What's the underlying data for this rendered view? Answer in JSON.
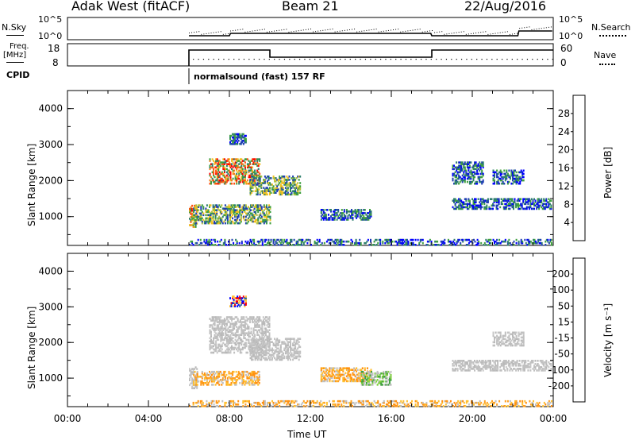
{
  "header": {
    "title": "Adak West (fitACF)",
    "beam": "Beam 21",
    "date": "22/Aug/2016"
  },
  "top_panels": {
    "nsky_label": "N.Sky",
    "nsearch_label": "N.Search",
    "nsky_ticks": [
      "10^5",
      "10^0"
    ],
    "nsearch_ticks": [
      "10^5",
      "10^0"
    ],
    "freq_label_line1": "Freq.",
    "freq_label_line2": "[MHz]",
    "freq_ticks": [
      "18",
      "8"
    ],
    "nave_label": "Nave",
    "nave_ticks": [
      "60",
      "0"
    ],
    "cpid_label": "CPID",
    "cpid_text": "normalsound (fast) 157 RF"
  },
  "chart_data": [
    {
      "type": "heatmap",
      "title": "",
      "ylabel": "Slant Range [km]",
      "xlabel": "",
      "ylim": [
        200,
        4500
      ],
      "yticks": [
        "4000",
        "3000",
        "2000",
        "1000"
      ],
      "colorbar": {
        "label": "Power [dB]",
        "ticks": [
          "28",
          "24",
          "20",
          "16",
          "12",
          "8",
          "4"
        ],
        "colors": [
          "#0000ff",
          "#1f3fb3",
          "#2f7f6f",
          "#3fa03f",
          "#b0c040",
          "#f0c020",
          "#f08020",
          "#ff3010",
          "#ff0000"
        ]
      },
      "regions": [
        {
          "t0": 6.0,
          "t1": 6.4,
          "r0": 700,
          "r1": 1300,
          "level": "high"
        },
        {
          "t0": 6.2,
          "t1": 10.0,
          "r0": 800,
          "r1": 1300,
          "level": "mid"
        },
        {
          "t0": 7.0,
          "t1": 9.5,
          "r0": 1900,
          "r1": 2600,
          "level": "high"
        },
        {
          "t0": 9.0,
          "t1": 11.5,
          "r0": 1600,
          "r1": 2100,
          "level": "mid"
        },
        {
          "t0": 12.5,
          "t1": 15.0,
          "r0": 900,
          "r1": 1200,
          "level": "low"
        },
        {
          "t0": 19.0,
          "t1": 23.9,
          "r0": 1200,
          "r1": 1500,
          "level": "low"
        },
        {
          "t0": 19.0,
          "t1": 20.5,
          "r0": 1900,
          "r1": 2500,
          "level": "low"
        },
        {
          "t0": 21.0,
          "t1": 22.5,
          "r0": 1900,
          "r1": 2300,
          "level": "low"
        },
        {
          "t0": 8.0,
          "t1": 8.8,
          "r0": 3000,
          "r1": 3300,
          "level": "low"
        },
        {
          "t0": 6.0,
          "t1": 23.9,
          "r0": 200,
          "r1": 350,
          "level": "low"
        }
      ]
    },
    {
      "type": "heatmap",
      "title": "",
      "ylabel": "Slant Range [km]",
      "xlabel": "Time UT",
      "ylim": [
        200,
        4500
      ],
      "yticks": [
        "4000",
        "3000",
        "2000",
        "1000"
      ],
      "xticks": [
        "00:00",
        "04:00",
        "08:00",
        "12:00",
        "16:00",
        "20:00",
        "00:00"
      ],
      "colorbar": {
        "label": "Velocity [m s⁻¹]",
        "ticks": [
          "200",
          "100",
          "50",
          "15",
          "-15",
          "-50",
          "-100",
          "-200"
        ],
        "colors": [
          "#ff0000",
          "#ff5020",
          "#ff9010",
          "#ffc030",
          "#c0c0c0",
          "#c0c0c0",
          "#80d040",
          "#40a040",
          "#2060a0",
          "#0000ff"
        ]
      },
      "regions": [
        {
          "t0": 6.0,
          "t1": 6.4,
          "r0": 700,
          "r1": 1300,
          "level": "gray"
        },
        {
          "t0": 6.2,
          "t1": 9.5,
          "r0": 800,
          "r1": 1200,
          "level": "orange"
        },
        {
          "t0": 7.0,
          "t1": 10.0,
          "r0": 1700,
          "r1": 2700,
          "level": "gray"
        },
        {
          "t0": 9.0,
          "t1": 11.5,
          "r0": 1500,
          "r1": 2100,
          "level": "gray"
        },
        {
          "t0": 12.5,
          "t1": 15.0,
          "r0": 900,
          "r1": 1300,
          "level": "orange"
        },
        {
          "t0": 14.5,
          "t1": 16.0,
          "r0": 800,
          "r1": 1200,
          "level": "green"
        },
        {
          "t0": 19.0,
          "t1": 23.9,
          "r0": 1200,
          "r1": 1500,
          "level": "gray"
        },
        {
          "t0": 21.0,
          "t1": 22.5,
          "r0": 1900,
          "r1": 2300,
          "level": "gray"
        },
        {
          "t0": 8.0,
          "t1": 8.8,
          "r0": 3000,
          "r1": 3300,
          "level": "blue"
        },
        {
          "t0": 6.0,
          "t1": 23.9,
          "r0": 200,
          "r1": 350,
          "level": "orange"
        }
      ]
    }
  ]
}
